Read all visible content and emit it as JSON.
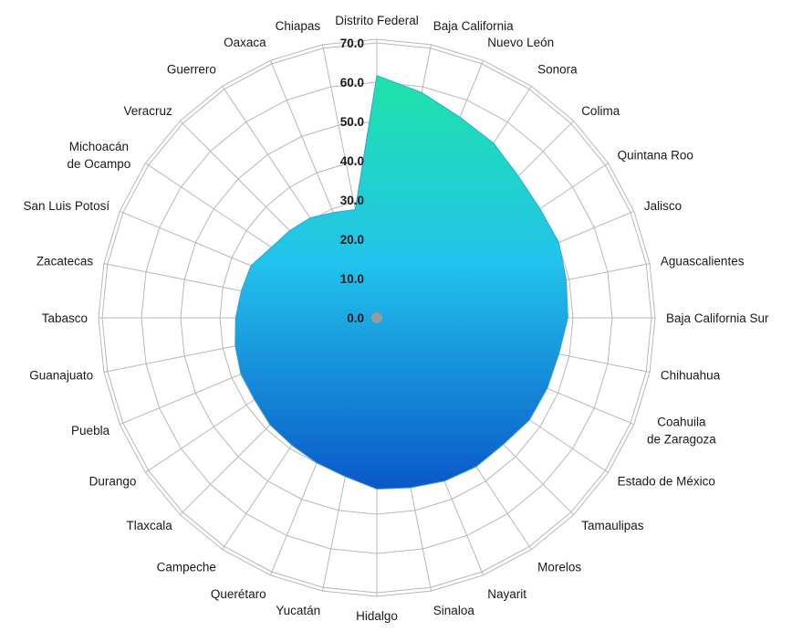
{
  "chart_data": {
    "type": "radar",
    "categories": [
      "Distrito Federal",
      "Baja California",
      "Nuevo León",
      "Sonora",
      "Colima",
      "Quintana Roo",
      "Jalisco",
      "Aguascalientes",
      "Baja California Sur",
      "Chihuahua",
      "Coahuila\nde Zaragoza",
      "Estado de México",
      "Tamaulipas",
      "Morelos",
      "Nayarit",
      "Sinaloa",
      "Hidalgo",
      "Yucatán",
      "Querétaro",
      "Campeche",
      "Tlaxcala",
      "Durango",
      "Puebla",
      "Guanajuato",
      "Tabasco",
      "Zacatecas",
      "San Luis Potosí",
      "Michoacán\nde Ocampo",
      "Veracruz",
      "Guerrero",
      "Oaxaca",
      "Chiapas"
    ],
    "series": [
      {
        "values": [
          61.7,
          58.5,
          55.3,
          53.5,
          51.0,
          50.0,
          50.2,
          49.2,
          48.7,
          47.3,
          47.0,
          46.8,
          45.6,
          45.6,
          45.0,
          44.1,
          43.6,
          41.2,
          40.0,
          39.0,
          38.5,
          37.5,
          37.5,
          36.8,
          36.0,
          35.2,
          34.7,
          32.3,
          31.4,
          30.6,
          29.0,
          28.1
        ]
      }
    ],
    "yticks": [
      "0.0",
      "10.0",
      "20.0",
      "30.0",
      "40.0",
      "50.0",
      "60.0",
      "70.0"
    ],
    "ylim": [
      0,
      70
    ],
    "grid": true,
    "legend": "none",
    "colors": {
      "fill_top": "#1fe3a8",
      "fill_mid": "#22c3ec",
      "fill_bottom": "#0a58c8",
      "grid": "#b8b8b8",
      "center_marker": "#9a9a9a"
    }
  }
}
